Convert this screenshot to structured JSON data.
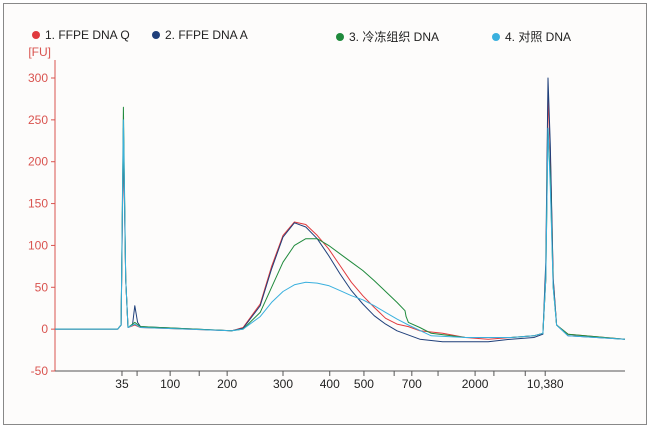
{
  "chart_data": {
    "type": "line",
    "title": "",
    "ylabel": "[FU]",
    "xlabel": "",
    "xlim": [
      0,
      100
    ],
    "ylim": [
      -50,
      300
    ],
    "yticks": [
      -50,
      0,
      50,
      100,
      150,
      200,
      250,
      300
    ],
    "xticks": [
      {
        "t": 11.75,
        "label": "35"
      },
      {
        "t": 20.2,
        "label": "100"
      },
      {
        "t": 30.2,
        "label": "200"
      },
      {
        "t": 40,
        "label": "300"
      },
      {
        "t": 48.2,
        "label": "400"
      },
      {
        "t": 54.2,
        "label": "500"
      },
      {
        "t": 62.6,
        "label": "700"
      },
      {
        "t": 73.7,
        "label": "2000"
      },
      {
        "t": 86,
        "label": "10,380"
      }
    ],
    "minor_xticks": [
      14.4,
      25.3,
      59.5,
      67.2,
      77,
      82.5
    ],
    "grid": false,
    "legend_position": "top",
    "series": [
      {
        "name": "1. FFPE DNA Q",
        "color": "#e03a3e",
        "x": [
          0,
          11,
          11.6,
          12.0,
          12.4,
          12.8,
          14,
          15,
          31,
          33,
          36,
          38,
          40,
          42,
          44,
          46,
          48,
          50,
          52,
          54,
          56,
          58,
          60,
          62,
          64,
          68,
          72,
          76,
          80,
          84,
          85.6,
          86.1,
          86.5,
          86.9,
          87.4,
          88,
          90,
          100
        ],
        "y": [
          0,
          0,
          5,
          230,
          60,
          2,
          5,
          2,
          -2,
          2,
          30,
          75,
          112,
          128,
          125,
          112,
          96,
          76,
          56,
          40,
          26,
          13,
          6,
          3,
          -2,
          -5,
          -10,
          -12,
          -10,
          -8,
          -5,
          60,
          280,
          210,
          60,
          5,
          -6,
          -12
        ]
      },
      {
        "name": "2. FFPE DNA A",
        "color": "#1f3f7a",
        "x": [
          0,
          11,
          11.6,
          12.0,
          12.4,
          12.8,
          13.6,
          14,
          14.5,
          15,
          31,
          33,
          36,
          38,
          40,
          42,
          44,
          46,
          48,
          50,
          52,
          54,
          56,
          58,
          60,
          64,
          68,
          72,
          76,
          80,
          84,
          85.6,
          86.1,
          86.5,
          86.9,
          87.4,
          88,
          90,
          100
        ],
        "y": [
          0,
          0,
          5,
          240,
          60,
          2,
          5,
          28,
          8,
          3,
          -2,
          1,
          28,
          72,
          110,
          127,
          122,
          108,
          88,
          66,
          46,
          30,
          16,
          6,
          -2,
          -12,
          -15,
          -15,
          -15,
          -12,
          -10,
          -6,
          80,
          300,
          220,
          60,
          5,
          -8,
          -12
        ]
      },
      {
        "name": "3. 冷冻组织 DNA",
        "color": "#1f8a3c",
        "x": [
          0,
          11,
          11.6,
          12.0,
          12.4,
          12.8,
          14,
          15,
          31,
          33,
          36,
          38,
          40,
          42,
          44,
          46,
          48,
          50,
          52,
          54,
          56,
          58,
          60,
          61.4,
          61.6,
          62,
          64,
          66,
          72,
          80,
          84,
          85.6,
          86.1,
          86.5,
          86.9,
          87.4,
          88,
          90,
          100
        ],
        "y": [
          0,
          0,
          5,
          265,
          60,
          2,
          8,
          3,
          -2,
          0,
          20,
          50,
          80,
          100,
          108,
          108,
          100,
          90,
          80,
          70,
          58,
          45,
          32,
          22,
          15,
          8,
          2,
          -5,
          -10,
          -10,
          -8,
          -5,
          60,
          240,
          180,
          50,
          5,
          -6,
          -12
        ]
      },
      {
        "name": "4. 对照 DNA",
        "color": "#3ab0de",
        "x": [
          0,
          11,
          11.6,
          12.0,
          12.4,
          12.8,
          14,
          15,
          31,
          33,
          36,
          38,
          40,
          42,
          44,
          46,
          48,
          50,
          52,
          54,
          56,
          58,
          60,
          62,
          66,
          72,
          76,
          80,
          84,
          85.6,
          86.1,
          86.5,
          86.9,
          87.4,
          88,
          90,
          100
        ],
        "y": [
          0,
          0,
          5,
          250,
          60,
          2,
          6,
          2,
          -2,
          0,
          15,
          32,
          45,
          53,
          56,
          55,
          52,
          46,
          40,
          35,
          28,
          20,
          12,
          5,
          -8,
          -10,
          -10,
          -10,
          -8,
          -5,
          60,
          240,
          170,
          50,
          5,
          -8,
          -12
        ]
      }
    ]
  }
}
